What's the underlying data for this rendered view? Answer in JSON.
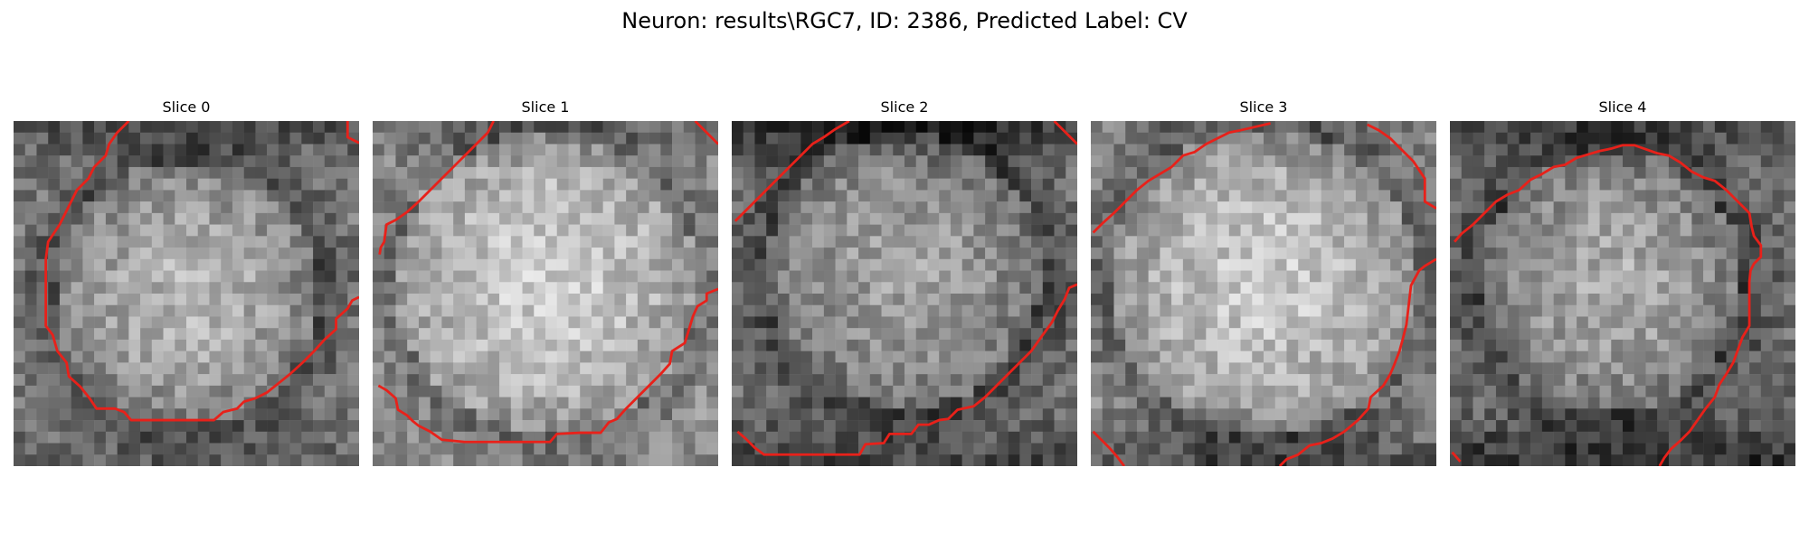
{
  "figure": {
    "title": "Neuron: results\\RGC7, ID: 2386, Predicted Label: CV"
  },
  "panels": [
    {
      "title": "Slice 0",
      "image": "grayscale-neuron-slice-with-red-outline"
    },
    {
      "title": "Slice 1",
      "image": "grayscale-neuron-slice-with-red-outline"
    },
    {
      "title": "Slice 2",
      "image": "grayscale-neuron-slice-with-red-outline"
    },
    {
      "title": "Slice 3",
      "image": "grayscale-neuron-slice-with-red-outline"
    },
    {
      "title": "Slice 4",
      "image": "grayscale-neuron-slice-with-red-outline"
    }
  ],
  "colors": {
    "background": "#ffffff",
    "outline": "#e8211a"
  }
}
